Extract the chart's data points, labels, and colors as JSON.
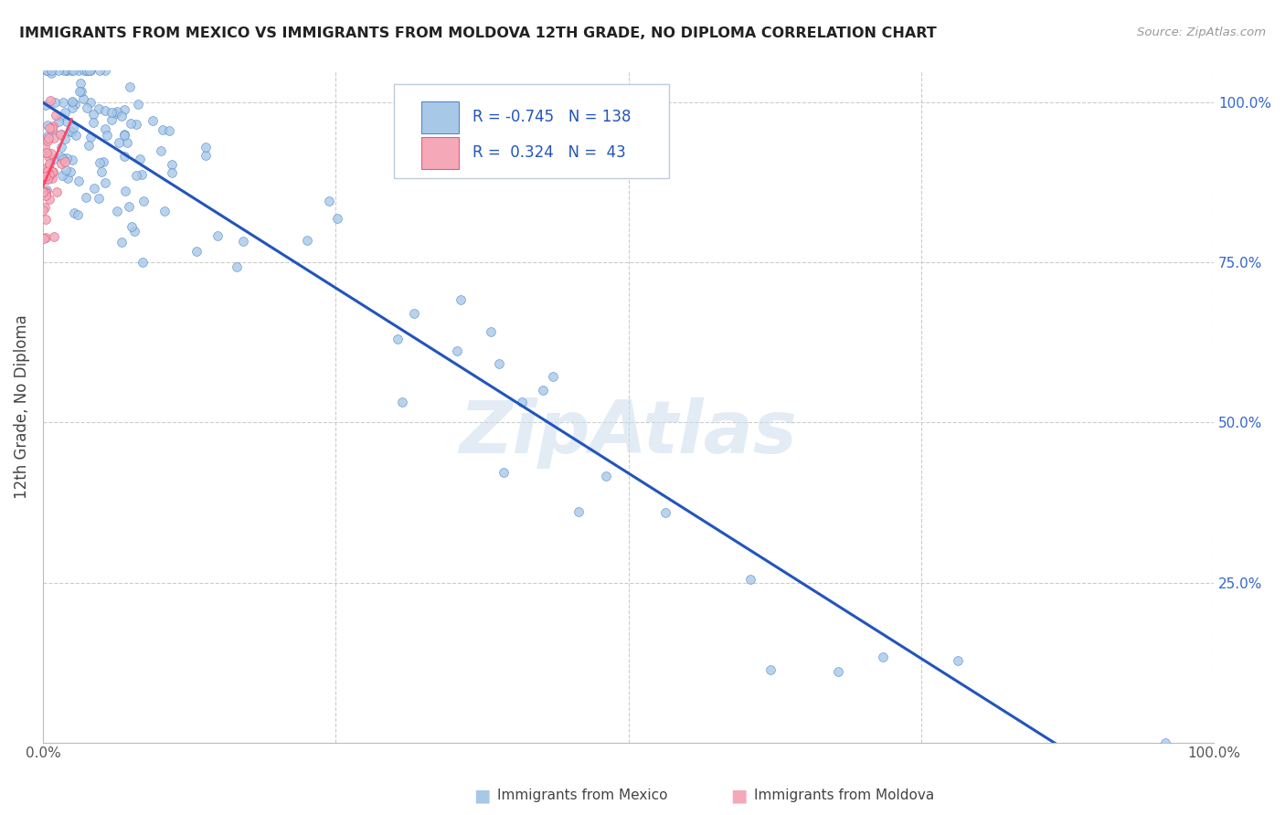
{
  "title": "IMMIGRANTS FROM MEXICO VS IMMIGRANTS FROM MOLDOVA 12TH GRADE, NO DIPLOMA CORRELATION CHART",
  "source": "Source: ZipAtlas.com",
  "ylabel": "12th Grade, No Diploma",
  "legend_label_blue": "Immigrants from Mexico",
  "legend_label_pink": "Immigrants from Moldova",
  "legend_blue_r": "-0.745",
  "legend_blue_n": "138",
  "legend_pink_r": "0.324",
  "legend_pink_n": "43",
  "blue_scatter_color": "#A8C8E8",
  "blue_edge_color": "#5588CC",
  "pink_scatter_color": "#F4A8B8",
  "pink_edge_color": "#E06080",
  "trend_blue_color": "#2255BB",
  "trend_pink_color": "#FF4466",
  "background_color": "#FFFFFF",
  "grid_color": "#CCCCCC",
  "watermark_text": "ZipAtlas",
  "title_color": "#222222",
  "axis_label_color": "#444444",
  "right_tick_color": "#3366CC",
  "bottom_tick_color": "#555555",
  "n_blue": 138,
  "n_pink": 43,
  "blue_r": -0.745,
  "pink_r": 0.324,
  "seed": 7,
  "xlim": [
    0.0,
    1.0
  ],
  "ylim": [
    0.0,
    1.05
  ],
  "yticks": [
    0.25,
    0.5,
    0.75,
    1.0
  ],
  "ytick_labels": [
    "25.0%",
    "50.0%",
    "75.0%",
    "100.0%"
  ]
}
